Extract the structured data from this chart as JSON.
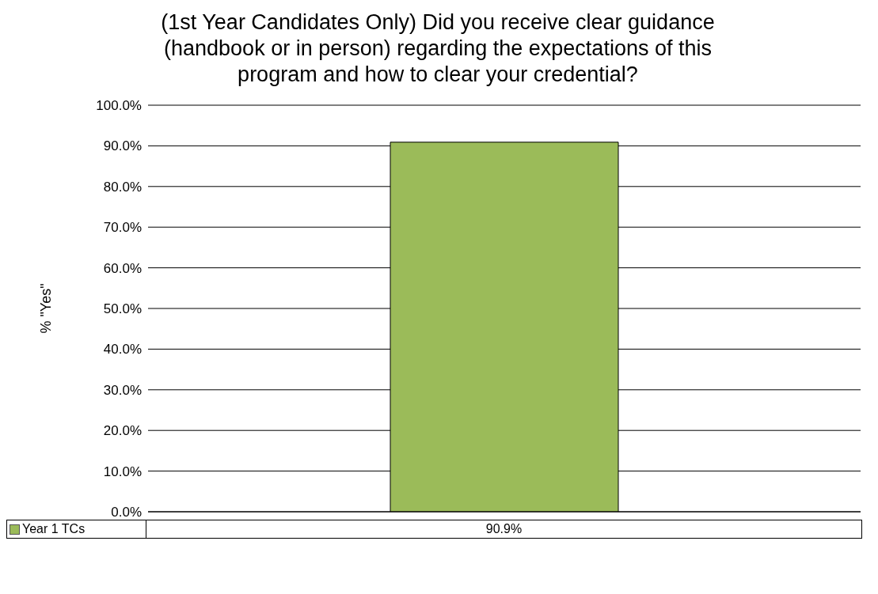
{
  "chart_data": {
    "type": "bar",
    "title": "(1st Year Candidates Only) Did you receive clear guidance (handbook or in person) regarding the expectations of this program and how to clear your credential?",
    "ylabel": "% \"Yes\"",
    "categories": [
      null
    ],
    "series": [
      {
        "name": "Year 1 TCs",
        "color": "#9bbb59",
        "values": [
          90.9
        ],
        "value_labels": [
          "90.9%"
        ]
      }
    ],
    "ylim": [
      0,
      100
    ],
    "yticks": [
      {
        "value": 0,
        "label": "0.0%"
      },
      {
        "value": 10,
        "label": "10.0%"
      },
      {
        "value": 20,
        "label": "20.0%"
      },
      {
        "value": 30,
        "label": "30.0%"
      },
      {
        "value": 40,
        "label": "40.0%"
      },
      {
        "value": 50,
        "label": "50.0%"
      },
      {
        "value": 60,
        "label": "60.0%"
      },
      {
        "value": 70,
        "label": "70.0%"
      },
      {
        "value": 80,
        "label": "80.0%"
      },
      {
        "value": 90,
        "label": "90.0%"
      },
      {
        "value": 100,
        "label": "100.0%"
      }
    ],
    "grid": "y",
    "legend": "bottom",
    "data_labels": true
  }
}
